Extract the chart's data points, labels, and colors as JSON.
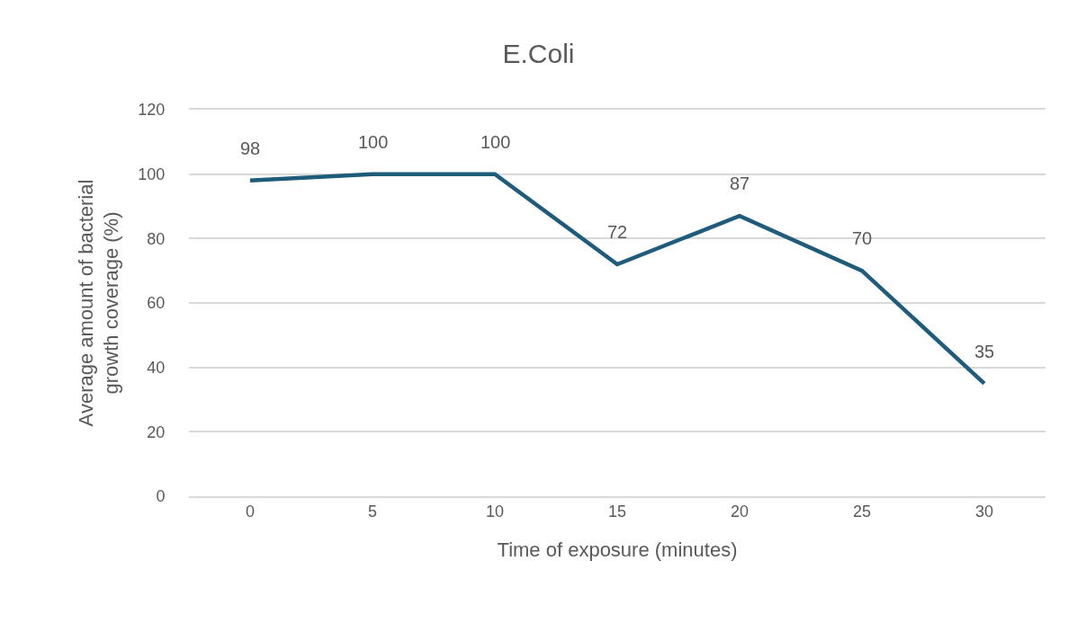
{
  "chart_data": {
    "type": "line",
    "title": "E.Coli",
    "xlabel": "Time of exposure (minutes)",
    "ylabel": "Average amount of bacterial growth coverage (%)",
    "categories": [
      "0",
      "5",
      "10",
      "15",
      "20",
      "25",
      "30"
    ],
    "series": [
      {
        "color": "#1f5b7a",
        "values": [
          98,
          100,
          100,
          72,
          87,
          70,
          35
        ]
      }
    ],
    "ylim": [
      0,
      120
    ],
    "yticks": [
      0,
      20,
      40,
      60,
      80,
      100,
      120
    ],
    "grid": "y",
    "marker": "none",
    "line_style": "solid",
    "data_labels": true
  }
}
